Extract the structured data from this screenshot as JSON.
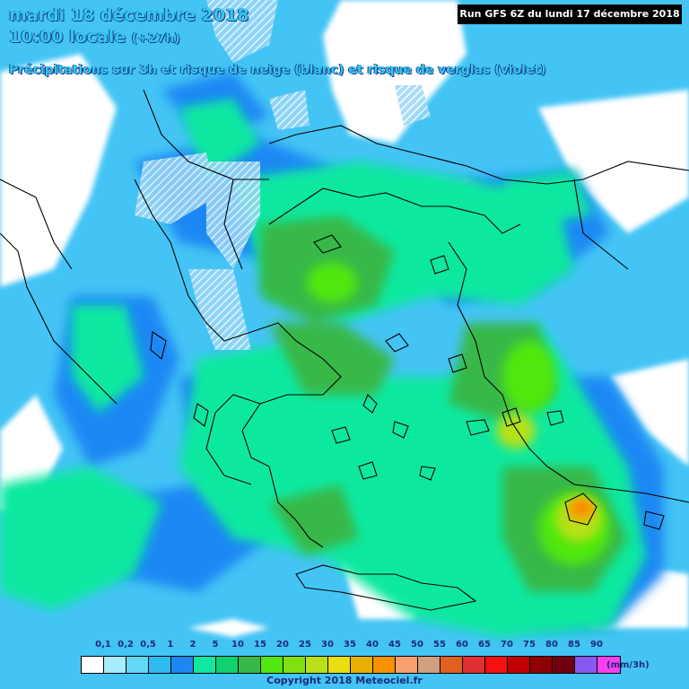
{
  "header": {
    "date_line": "mardi 18 décembre 2018",
    "time_main": "10:00 locale",
    "time_offset": "(+27h)",
    "description": "Précipitations sur 3h et risque de neige (blanc) et risque de verglas (violet)",
    "run_info": "Run GFS 6Z du lundi 17 décembre 2018"
  },
  "legend": {
    "labels": [
      "0,1",
      "0,2",
      "0,5",
      "1",
      "2",
      "5",
      "10",
      "15",
      "20",
      "25",
      "30",
      "35",
      "40",
      "45",
      "50",
      "55",
      "60",
      "65",
      "70",
      "75",
      "80",
      "85",
      "90"
    ],
    "colors": [
      "#ffffff",
      "#a8ecfc",
      "#64d8f8",
      "#2cbcf0",
      "#1c88f4",
      "#10e8a0",
      "#10d070",
      "#38b848",
      "#50e810",
      "#80e010",
      "#b8e018",
      "#e8e010",
      "#e8b000",
      "#f89000",
      "#f8a070",
      "#d0a080",
      "#e06020",
      "#e03030",
      "#f81010",
      "#c00000",
      "#900000",
      "#700010",
      "#8858f0",
      "#f840f0"
    ],
    "unit": "(mm/3h)"
  },
  "footer": {
    "copyright": "Copyright 2018 Meteociel.fr"
  },
  "map_colors": {
    "background_no_precip": "#ffffff",
    "light_precip": "#44c4f4",
    "mid_precip": "#1c88f4",
    "moderate": "#10e8a0",
    "green": "#40b848",
    "bright_green": "#50e810",
    "yellow_green": "#b8e018",
    "orange": "#f89000",
    "snow_hatch": "#ffffff",
    "coastline": "#000000"
  }
}
